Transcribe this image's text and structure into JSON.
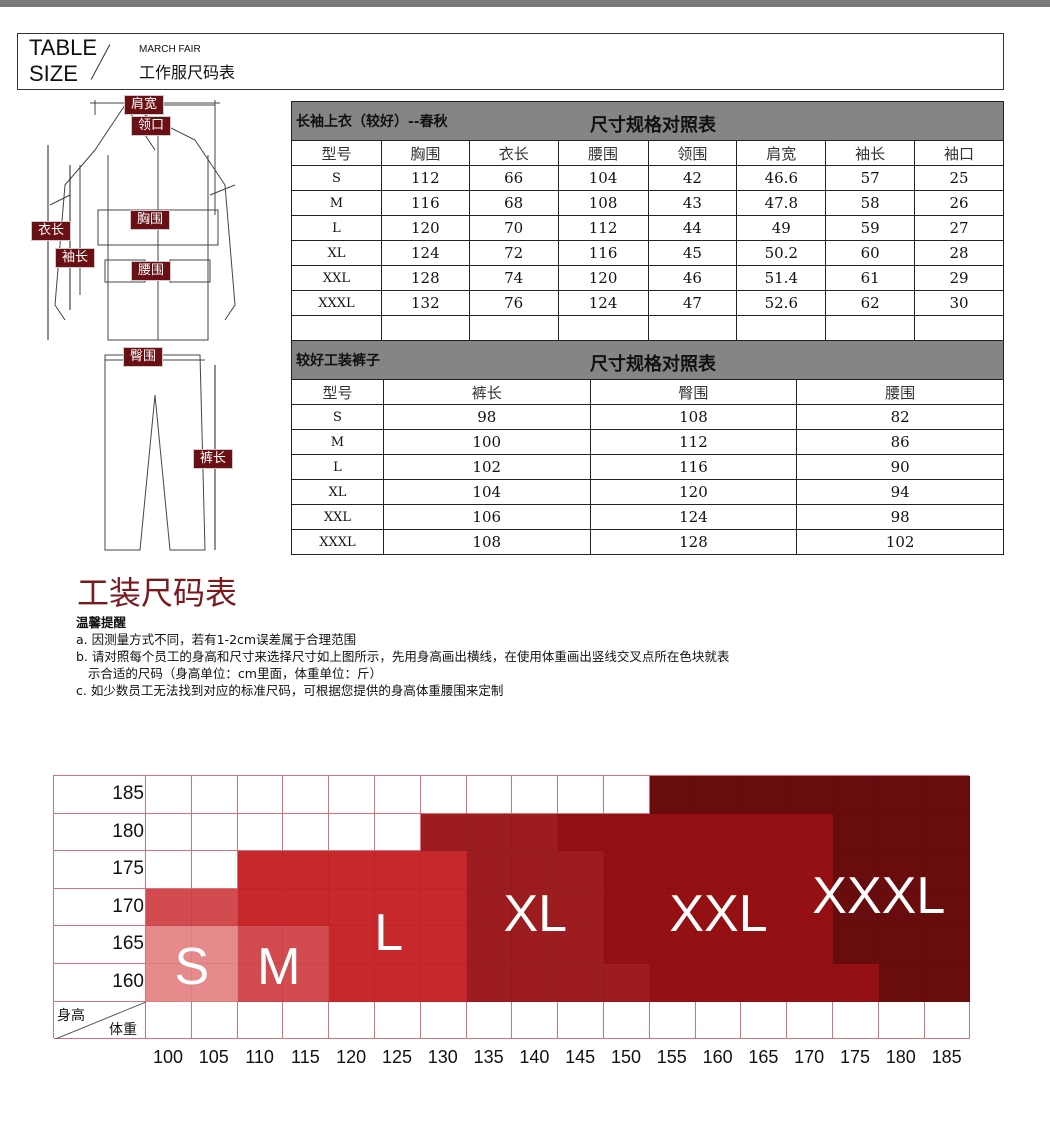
{
  "header": {
    "title_en_1": "TABLE",
    "title_en_2": "SIZE",
    "subtitle_en": "MARCH FAIR",
    "subtitle_cn": "工作服尺码表"
  },
  "shirt_labels": {
    "shoulder": "肩宽",
    "collar": "领口",
    "length": "衣长",
    "sleeve": "袖长",
    "chest": "胸围",
    "waist": "腰围"
  },
  "pants_labels": {
    "hip": "臀围",
    "length": "裤长"
  },
  "shirt_table": {
    "name": "长袖上衣（较好）--春秋",
    "title": "尺寸规格对照表",
    "columns": [
      "型号",
      "胸围",
      "衣长",
      "腰围",
      "领围",
      "肩宽",
      "袖长",
      "袖口"
    ],
    "rows": [
      [
        "S",
        "112",
        "66",
        "104",
        "42",
        "46.6",
        "57",
        "25"
      ],
      [
        "M",
        "116",
        "68",
        "108",
        "43",
        "47.8",
        "58",
        "26"
      ],
      [
        "L",
        "120",
        "70",
        "112",
        "44",
        "49",
        "59",
        "27"
      ],
      [
        "XL",
        "124",
        "72",
        "116",
        "45",
        "50.2",
        "60",
        "28"
      ],
      [
        "XXL",
        "128",
        "74",
        "120",
        "46",
        "51.4",
        "61",
        "29"
      ],
      [
        "XXXL",
        "132",
        "76",
        "124",
        "47",
        "52.6",
        "62",
        "30"
      ],
      [
        "",
        "",
        "",
        "",
        "",
        "",
        "",
        ""
      ]
    ]
  },
  "pants_table": {
    "name": "较好工装裤子",
    "title": "尺寸规格对照表",
    "columns": [
      "型号",
      "裤长",
      "臀围",
      "腰围"
    ],
    "rows": [
      [
        "S",
        "98",
        "108",
        "82"
      ],
      [
        "M",
        "100",
        "112",
        "86"
      ],
      [
        "L",
        "102",
        "116",
        "90"
      ],
      [
        "XL",
        "104",
        "120",
        "94"
      ],
      [
        "XXL",
        "106",
        "124",
        "98"
      ],
      [
        "XXXL",
        "108",
        "128",
        "102"
      ]
    ]
  },
  "section_title": "工装尺码表",
  "notes": {
    "heading": "温馨提醒",
    "a": "a. 因测量方式不同，若有1-2cm误差属于合理范围",
    "b1": "b. 请对照每个员工的身高和尺寸来选择尺寸如上图所示，先用身高画出横线，在使用体重画出竖线交叉点所在色块就表",
    "b2": "   示合适的尺码（身高单位：cm里面，体重单位：斤）",
    "c": "c. 如少数员工无法找到对应的标准尺码，可根据您提供的身高体重腰围来定制"
  },
  "size_chart": {
    "height_label": "身高",
    "weight_label": "体重",
    "heights": [
      "185",
      "180",
      "175",
      "170",
      "165",
      "160"
    ],
    "weights": [
      "100",
      "105",
      "110",
      "115",
      "120",
      "125",
      "130",
      "135",
      "140",
      "145",
      "150",
      "155",
      "160",
      "165",
      "170",
      "175",
      "180",
      "185"
    ],
    "cells": [
      [
        "",
        "",
        "",
        "",
        "",
        "",
        "",
        "",
        "",
        "",
        "",
        "XXXL",
        "XXXL",
        "XXXL",
        "XXXL",
        "XXXL",
        "XXXL",
        "XXXL"
      ],
      [
        "",
        "",
        "",
        "",
        "",
        "",
        "XL",
        "XL",
        "XL",
        "XXL",
        "XXL",
        "XXL",
        "XXL",
        "XXL",
        "XXL",
        "XXXL",
        "XXXL",
        "XXXL"
      ],
      [
        "",
        "",
        "L",
        "L",
        "L",
        "L",
        "L",
        "XL",
        "XL",
        "XL",
        "XXL",
        "XXL",
        "XXL",
        "XXL",
        "XXL",
        "XXXL",
        "XXXL",
        "XXXL"
      ],
      [
        "M",
        "M",
        "L",
        "L",
        "L",
        "L",
        "L",
        "XL",
        "XL",
        "XL",
        "XXL",
        "XXL",
        "XXL",
        "XXL",
        "XXL",
        "XXXL",
        "XXXL",
        "XXXL"
      ],
      [
        "S",
        "S",
        "M",
        "M",
        "L",
        "L",
        "L",
        "XL",
        "XL",
        "XL",
        "XXL",
        "XXL",
        "XXL",
        "XXL",
        "XXL",
        "XXXL",
        "XXXL",
        "XXXL"
      ],
      [
        "S",
        "S",
        "M",
        "M",
        "L",
        "L",
        "L",
        "XL",
        "XL",
        "XL",
        "XL",
        "XXL",
        "XXL",
        "XXL",
        "XXL",
        "XXL",
        "XXXL",
        "XXXL"
      ]
    ],
    "colors": {
      "S": "#e68a8c",
      "M": "#d24b4f",
      "L": "#c6282c",
      "XL": "#9d1c1f",
      "XXL": "#951013",
      "XXXL": "#690c0e"
    },
    "size_labels": [
      "S",
      "M",
      "L",
      "XL",
      "XXL",
      "XXXL"
    ]
  }
}
